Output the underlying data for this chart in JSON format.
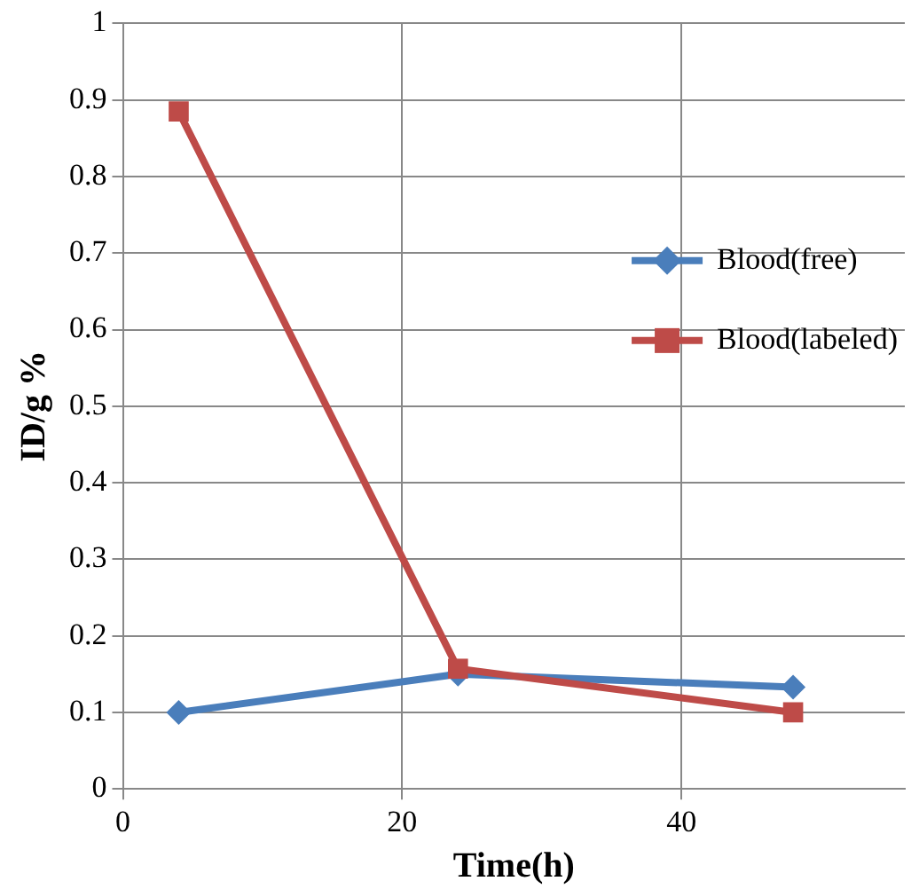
{
  "chart_data": {
    "type": "line",
    "xlabel": "Time(h)",
    "ylabel": "ID/g %",
    "x": [
      4,
      24,
      48
    ],
    "xlim": [
      0,
      56
    ],
    "xticks": [
      0,
      20,
      40
    ],
    "ylim": [
      0,
      1
    ],
    "yticks": [
      0,
      0.1,
      0.2,
      0.3,
      0.4,
      0.5,
      0.6,
      0.7,
      0.8,
      0.9,
      1
    ],
    "grid": true,
    "legend": "right",
    "line_style": "solid",
    "series": [
      {
        "name": "Blood(free)",
        "color": "#4a7ebb",
        "marker": "diamond",
        "values": [
          0.1,
          0.15,
          0.133
        ]
      },
      {
        "name": "Blood(labeled)",
        "color": "#be4b48",
        "marker": "square",
        "values": [
          0.885,
          0.157,
          0.1
        ]
      }
    ]
  }
}
